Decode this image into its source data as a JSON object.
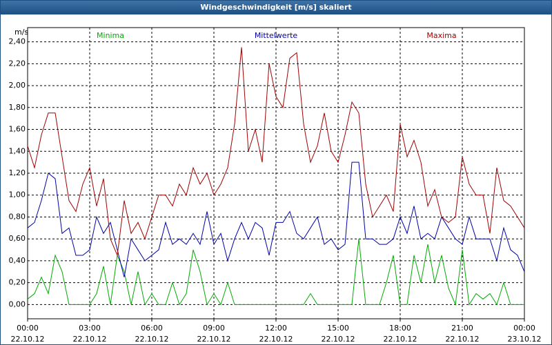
{
  "chart_data": {
    "type": "line",
    "title": "Windgeschwindigkeit [m/s] skaliert",
    "y_label": "m/s",
    "x": [
      0,
      20,
      40,
      60,
      80,
      100,
      120,
      140,
      160,
      180,
      200,
      220,
      240,
      260,
      280,
      300,
      320,
      340,
      360,
      380,
      400,
      420,
      440,
      460,
      480,
      500,
      520,
      540,
      560,
      580,
      600,
      620,
      640,
      660,
      680,
      700,
      720,
      740,
      760,
      780,
      800,
      820,
      840,
      860,
      880,
      900,
      920,
      940,
      960,
      980,
      1000,
      1020,
      1040,
      1060,
      1080,
      1100,
      1120,
      1140,
      1160,
      1180,
      1200,
      1220,
      1240,
      1260,
      1280,
      1300,
      1320,
      1340,
      1360,
      1380,
      1400,
      1420,
      1440
    ],
    "xlim": [
      0,
      1440
    ],
    "xticks": [
      {
        "value": 0,
        "label": "00:00",
        "date": "22.10.12"
      },
      {
        "value": 180,
        "label": "03:00",
        "date": "22.10.12"
      },
      {
        "value": 360,
        "label": "06:00",
        "date": "22.10.12"
      },
      {
        "value": 540,
        "label": "09:00",
        "date": "22.10.12"
      },
      {
        "value": 720,
        "label": "12:00",
        "date": "22.10.12"
      },
      {
        "value": 900,
        "label": "15:00",
        "date": "22.10.12"
      },
      {
        "value": 1080,
        "label": "18:00",
        "date": "22.10.12"
      },
      {
        "value": 1260,
        "label": "21:00",
        "date": "22.10.12"
      },
      {
        "value": 1440,
        "label": "00:00",
        "date": "23.10.12"
      }
    ],
    "ylim": [
      -0.13,
      2.53
    ],
    "yticks": [
      {
        "value": 0,
        "label": "0,00"
      },
      {
        "value": 0.2,
        "label": "0,20"
      },
      {
        "value": 0.4,
        "label": "0,40"
      },
      {
        "value": 0.6,
        "label": "0,60"
      },
      {
        "value": 0.8,
        "label": "0,80"
      },
      {
        "value": 1.0,
        "label": "1,00"
      },
      {
        "value": 1.2,
        "label": "1,20"
      },
      {
        "value": 1.4,
        "label": "1,40"
      },
      {
        "value": 1.6,
        "label": "1,60"
      },
      {
        "value": 1.8,
        "label": "1,80"
      },
      {
        "value": 2.0,
        "label": "2,00"
      },
      {
        "value": 2.2,
        "label": "2,20"
      },
      {
        "value": 2.4,
        "label": "2,40"
      }
    ],
    "grid": true,
    "series": [
      {
        "name": "Minima",
        "color": "#00aa00",
        "values": [
          0.05,
          0.1,
          0.25,
          0.1,
          0.45,
          0.3,
          0,
          0,
          0,
          0,
          0.1,
          0.35,
          0,
          0.45,
          0.3,
          0,
          0.3,
          0,
          0.1,
          0,
          0,
          0.2,
          0,
          0.1,
          0.5,
          0.3,
          0,
          0.1,
          0,
          0.2,
          0,
          0,
          0,
          0,
          0,
          0,
          0,
          0,
          0,
          0,
          0,
          0.1,
          0,
          0,
          0,
          0,
          0,
          0,
          0.6,
          0,
          0,
          0,
          0.2,
          0.45,
          0,
          0,
          0.45,
          0.2,
          0.55,
          0.2,
          0.45,
          0.15,
          0,
          0.5,
          0,
          0.1,
          0.05,
          0.1,
          0,
          0.2,
          0,
          0,
          0
        ]
      },
      {
        "name": "Mittelwerte",
        "color": "#0000aa",
        "values": [
          0.7,
          0.75,
          0.95,
          1.2,
          1.15,
          0.65,
          0.7,
          0.45,
          0.45,
          0.5,
          0.8,
          0.65,
          0.75,
          0.5,
          0.25,
          0.6,
          0.5,
          0.4,
          0.45,
          0.5,
          0.75,
          0.55,
          0.6,
          0.55,
          0.65,
          0.55,
          0.85,
          0.55,
          0.65,
          0.4,
          0.6,
          0.75,
          0.6,
          0.75,
          0.7,
          0.45,
          0.75,
          0.75,
          0.85,
          0.65,
          0.6,
          0.7,
          0.8,
          0.55,
          0.6,
          0.5,
          0.55,
          1.3,
          1.3,
          0.6,
          0.6,
          0.55,
          0.55,
          0.6,
          0.8,
          0.65,
          0.9,
          0.6,
          0.65,
          0.6,
          0.8,
          0.7,
          0.6,
          0.55,
          0.8,
          0.6,
          0.6,
          0.6,
          0.4,
          0.7,
          0.5,
          0.45,
          0.3
        ]
      },
      {
        "name": "Maxima",
        "color": "#a00000",
        "values": [
          1.45,
          1.25,
          1.55,
          1.75,
          1.75,
          1.35,
          0.95,
          0.85,
          1.1,
          1.25,
          0.9,
          1.15,
          0.6,
          0.45,
          0.95,
          0.65,
          0.75,
          0.6,
          0.8,
          1.0,
          1.0,
          0.9,
          1.1,
          1.0,
          1.25,
          1.1,
          1.2,
          1.0,
          1.1,
          1.25,
          1.65,
          2.35,
          1.4,
          1.6,
          1.3,
          2.2,
          1.9,
          1.8,
          2.25,
          2.3,
          1.65,
          1.3,
          1.45,
          1.75,
          1.4,
          1.3,
          1.55,
          1.85,
          1.75,
          1.1,
          0.8,
          0.9,
          1.0,
          0.85,
          1.65,
          1.35,
          1.5,
          1.3,
          0.9,
          1.05,
          0.8,
          0.75,
          0.8,
          1.35,
          1.1,
          1.0,
          1.0,
          0.65,
          1.25,
          0.95,
          0.9,
          0.8,
          0.7
        ]
      }
    ]
  }
}
